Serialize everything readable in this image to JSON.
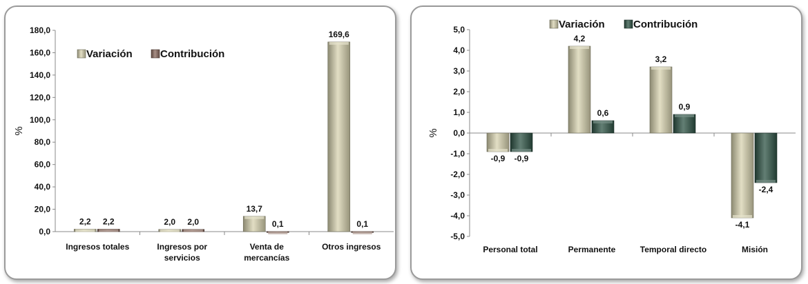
{
  "chart_data": [
    {
      "type": "bar",
      "ylabel": "%",
      "ylim": [
        0,
        180
      ],
      "ytick_step": 20,
      "ytick_decimals": 1,
      "categories": [
        [
          "Ingresos totales"
        ],
        [
          "Ingresos por",
          "servicios"
        ],
        [
          "Venta de",
          "mercancías"
        ],
        [
          "Otros ingresos"
        ]
      ],
      "series": [
        {
          "name": "Variación",
          "values": [
            2.2,
            2.0,
            13.7,
            169.6
          ],
          "color": "#d8d3b0"
        },
        {
          "name": "Contribución",
          "values": [
            2.2,
            2.0,
            0.1,
            0.1
          ],
          "color": "#8b6a5e"
        }
      ],
      "legend": "top-left, inside plot",
      "grid": false
    },
    {
      "type": "bar",
      "ylabel": "%",
      "ylim": [
        -5,
        5
      ],
      "ytick_step": 1,
      "ytick_decimals": 1,
      "categories": [
        [
          "Personal total"
        ],
        [
          "Permanente"
        ],
        [
          "Temporal directo"
        ],
        [
          "Misión"
        ]
      ],
      "series": [
        {
          "name": "Variación",
          "values": [
            -0.9,
            4.2,
            3.2,
            -4.1
          ],
          "color": "#d8d3b0"
        },
        {
          "name": "Contribución",
          "values": [
            -0.9,
            0.6,
            0.9,
            -2.4
          ],
          "color": "#2f5446"
        }
      ],
      "legend": "top, inside plot",
      "grid": false
    }
  ]
}
